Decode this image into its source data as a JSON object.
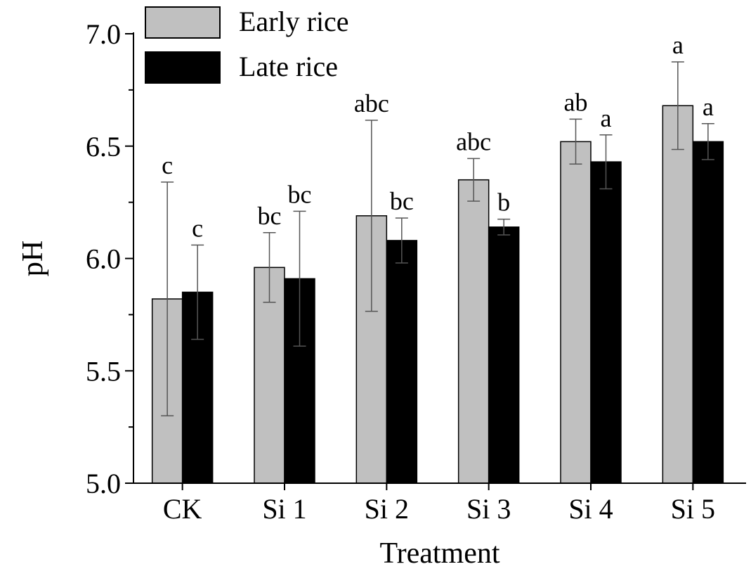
{
  "chart_data": {
    "type": "bar",
    "title": "",
    "xlabel": "Treatment",
    "ylabel": "pH",
    "ylim": [
      5.0,
      7.0
    ],
    "yticks": [
      "5.0",
      "5.5",
      "6.0",
      "6.5",
      "7.0"
    ],
    "categories": [
      "CK",
      "Si 1",
      "Si 2",
      "Si 3",
      "Si 4",
      "Si 5"
    ],
    "legend_position": "top-left",
    "series": [
      {
        "name": "Early rice",
        "color": "#c0c0c0",
        "values": [
          5.82,
          5.96,
          6.19,
          6.35,
          6.52,
          6.68
        ],
        "errors": [
          0.52,
          0.155,
          0.425,
          0.095,
          0.1,
          0.195
        ],
        "labels": [
          "c",
          "bc",
          "abc",
          "abc",
          "ab",
          "a"
        ]
      },
      {
        "name": "Late rice",
        "color": "#000000",
        "values": [
          5.85,
          5.91,
          6.08,
          6.14,
          6.43,
          6.52
        ],
        "errors": [
          0.21,
          0.3,
          0.1,
          0.035,
          0.12,
          0.08
        ],
        "labels": [
          "c",
          "bc",
          "bc",
          "b",
          "a",
          "a"
        ]
      }
    ]
  }
}
